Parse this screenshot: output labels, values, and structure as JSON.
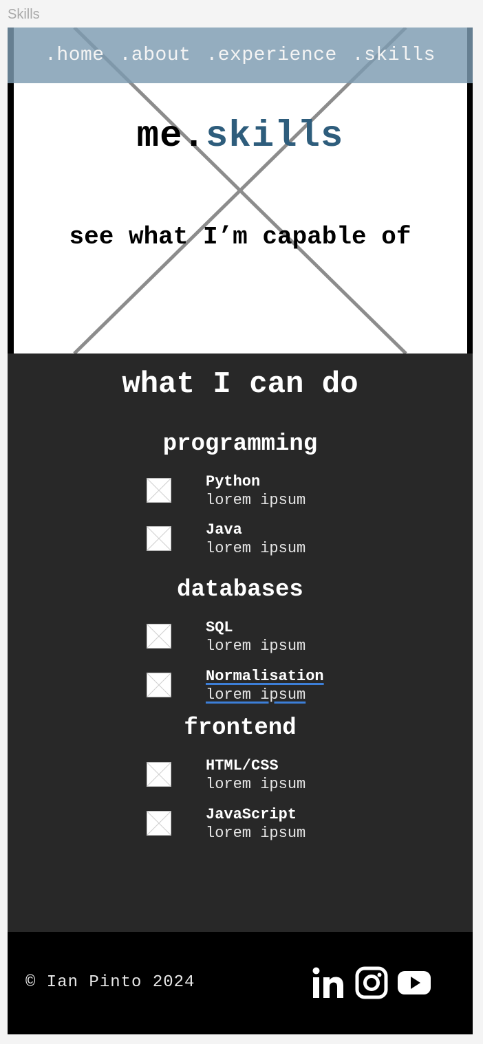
{
  "frame": {
    "label": "Skills"
  },
  "nav": {
    "items": [
      ".home",
      ".about",
      ".experience",
      ".skills"
    ]
  },
  "hero": {
    "title_prefix": "me.",
    "title_accent": "skills",
    "subtitle": "see what I’m capable of"
  },
  "skills": {
    "heading": "what I can do",
    "categories": [
      {
        "title": "programming",
        "items": [
          {
            "name": "Python",
            "desc": "lorem ipsum"
          },
          {
            "name": "Java",
            "desc": "lorem ipsum"
          }
        ]
      },
      {
        "title": "databases",
        "items": [
          {
            "name": "SQL",
            "desc": "lorem ipsum"
          },
          {
            "name": "Normalisation",
            "desc": "lorem ipsum"
          }
        ]
      },
      {
        "title": "frontend",
        "items": [
          {
            "name": "HTML/CSS",
            "desc": "lorem ipsum"
          },
          {
            "name": "JavaScript",
            "desc": "lorem ipsum"
          }
        ]
      }
    ]
  },
  "footer": {
    "copyright": "© Ian Pinto 2024",
    "social_icons": [
      "linkedin-icon",
      "instagram-icon",
      "youtube-icon"
    ]
  },
  "colors": {
    "nav_bg": "#7d9bb1",
    "accent": "#2e5d7c",
    "section_bg": "#282828",
    "footer_bg": "#000000",
    "spellcheck_underline": "#3d7fd8"
  }
}
